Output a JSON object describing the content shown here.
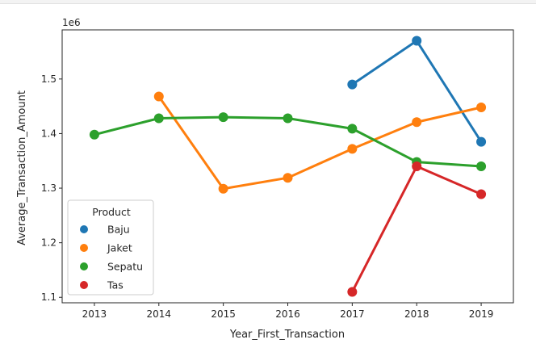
{
  "chart_data": {
    "type": "line",
    "x": [
      2013,
      2014,
      2015,
      2016,
      2017,
      2018,
      2019
    ],
    "x_tick_labels": [
      "2013",
      "2014",
      "2015",
      "2016",
      "2017",
      "2018",
      "2019"
    ],
    "y_tick_values": [
      1.1,
      1.2,
      1.3,
      1.4,
      1.5
    ],
    "y_tick_labels": [
      "1.1",
      "1.2",
      "1.3",
      "1.4",
      "1.5"
    ],
    "y_offset_label": "1e6",
    "xlabel": "Year_First_Transaction",
    "ylabel": "Average_Transaction_Amount",
    "xlim": [
      2012.5,
      2019.5
    ],
    "ylim": [
      1.09,
      1.59
    ],
    "legend_title": "Product",
    "legend_position": "lower-left",
    "grid": false,
    "series": [
      {
        "name": "Baju",
        "color": "#1f77b4",
        "x": [
          2017,
          2018,
          2019
        ],
        "values": [
          1.49,
          1.57,
          1.385
        ]
      },
      {
        "name": "Jaket",
        "color": "#ff7f0e",
        "x": [
          2014,
          2015,
          2016,
          2017,
          2018,
          2019
        ],
        "values": [
          1.468,
          1.299,
          1.319,
          1.372,
          1.421,
          1.448
        ]
      },
      {
        "name": "Sepatu",
        "color": "#2ca02c",
        "x": [
          2013,
          2014,
          2015,
          2016,
          2017,
          2018,
          2019
        ],
        "values": [
          1.398,
          1.428,
          1.43,
          1.428,
          1.409,
          1.348,
          1.34
        ]
      },
      {
        "name": "Tas",
        "color": "#d62728",
        "x": [
          2017,
          2018,
          2019
        ],
        "values": [
          1.11,
          1.34,
          1.289
        ]
      }
    ]
  }
}
